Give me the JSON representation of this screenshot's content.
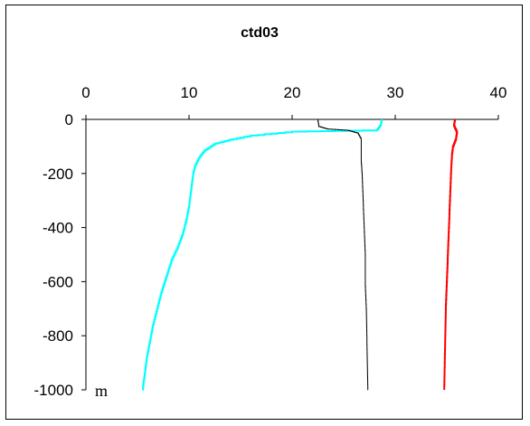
{
  "chart_data": {
    "type": "line",
    "title": "ctd03",
    "xlabel": "",
    "ylabel": "",
    "unit_label": "m",
    "xlim": [
      0,
      40
    ],
    "ylim": [
      -1000,
      0
    ],
    "x_ticks": [
      0,
      10,
      20,
      30,
      40
    ],
    "y_ticks": [
      0,
      -200,
      -400,
      -600,
      -800,
      -1000
    ],
    "x_axis_position": "top",
    "grid": false,
    "legend": "none",
    "series": [
      {
        "color": "#00ffff",
        "points": [
          [
            28.7,
            0
          ],
          [
            28.6,
            -20
          ],
          [
            28.2,
            -40
          ],
          [
            20,
            -45
          ],
          [
            16,
            -60
          ],
          [
            14,
            -75
          ],
          [
            12.5,
            -90
          ],
          [
            11.5,
            -115
          ],
          [
            11,
            -140
          ],
          [
            10.6,
            -170
          ],
          [
            10.4,
            -200
          ],
          [
            10.2,
            -260
          ],
          [
            10,
            -320
          ],
          [
            9.8,
            -360
          ],
          [
            9.4,
            -420
          ],
          [
            8.8,
            -480
          ],
          [
            8.3,
            -520
          ],
          [
            7.8,
            -580
          ],
          [
            7.3,
            -640
          ],
          [
            6.9,
            -700
          ],
          [
            6.5,
            -760
          ],
          [
            6.2,
            -820
          ],
          [
            5.9,
            -880
          ],
          [
            5.7,
            -940
          ],
          [
            5.5,
            -1000
          ]
        ]
      },
      {
        "color": "#000000",
        "points": [
          [
            22.5,
            0
          ],
          [
            22.6,
            -25
          ],
          [
            23.5,
            -35
          ],
          [
            25.5,
            -40
          ],
          [
            26.4,
            -50
          ],
          [
            26.7,
            -70
          ],
          [
            26.7,
            -150
          ],
          [
            26.8,
            -200
          ],
          [
            26.9,
            -300
          ],
          [
            27,
            -400
          ],
          [
            27.1,
            -500
          ],
          [
            27.1,
            -600
          ],
          [
            27.2,
            -700
          ],
          [
            27.25,
            -800
          ],
          [
            27.3,
            -900
          ],
          [
            27.35,
            -1000
          ]
        ]
      },
      {
        "color": "#ff0000",
        "points": [
          [
            35.8,
            0
          ],
          [
            35.7,
            -20
          ],
          [
            36,
            -45
          ],
          [
            35.9,
            -70
          ],
          [
            35.6,
            -100
          ],
          [
            35.5,
            -130
          ],
          [
            35.4,
            -200
          ],
          [
            35.3,
            -300
          ],
          [
            35.2,
            -400
          ],
          [
            35.1,
            -500
          ],
          [
            35,
            -600
          ],
          [
            34.9,
            -700
          ],
          [
            34.85,
            -800
          ],
          [
            34.8,
            -900
          ],
          [
            34.75,
            -1000
          ]
        ]
      }
    ]
  }
}
